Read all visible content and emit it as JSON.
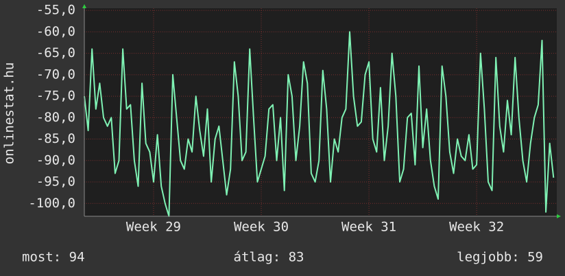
{
  "chart_data": {
    "type": "line",
    "y_label": "onlinestat.hu",
    "x": [
      -108,
      -102,
      -96,
      -90,
      -84,
      -78,
      -72,
      -66,
      -60,
      -54,
      -48,
      -42,
      -36,
      -30,
      -24,
      -18,
      -12,
      -6,
      0,
      6,
      12,
      18,
      24,
      30,
      36,
      42,
      48,
      54,
      60,
      66,
      72,
      78,
      84,
      90,
      96,
      102,
      108,
      114,
      120,
      126,
      132,
      138,
      144,
      150,
      156,
      162,
      168,
      174,
      180,
      186,
      192,
      198,
      204,
      210,
      216,
      222,
      228,
      234,
      240,
      246,
      252,
      258,
      264,
      270,
      276,
      282,
      288,
      294,
      300,
      306,
      312,
      318,
      324,
      330,
      336,
      342,
      348,
      354,
      360,
      366,
      372,
      378,
      384,
      390,
      396,
      402,
      408,
      414,
      420,
      426,
      432,
      438,
      444,
      450,
      456,
      462,
      468,
      474,
      480,
      486,
      492,
      498,
      504,
      510,
      516,
      522,
      528,
      534,
      540,
      546,
      552,
      558,
      564,
      570,
      576,
      582,
      588,
      594,
      600,
      606,
      612,
      618,
      624
    ],
    "series": [
      {
        "name": "onlinestat.hu",
        "color": "#7ff2b4",
        "values": [
          -75,
          -83,
          -64,
          -78,
          -72,
          -80,
          -82,
          -80,
          -93,
          -90,
          -64,
          -78,
          -77,
          -90,
          -96,
          -72,
          -86,
          -88,
          -95,
          -84,
          -96,
          -100,
          -103,
          -70,
          -80,
          -90,
          -92,
          -85,
          -88,
          -75,
          -83,
          -89,
          -78,
          -95,
          -85,
          -82,
          -90,
          -98,
          -92,
          -67,
          -75,
          -90,
          -88,
          -64,
          -80,
          -95,
          -92,
          -89,
          -78,
          -77,
          -90,
          -80,
          -97,
          -70,
          -75,
          -90,
          -82,
          -67,
          -72,
          -93,
          -95,
          -90,
          -69,
          -78,
          -95,
          -85,
          -88,
          -80,
          -78,
          -60,
          -75,
          -82,
          -81,
          -70,
          -67,
          -85,
          -88,
          -73,
          -90,
          -82,
          -65,
          -75,
          -95,
          -92,
          -80,
          -79,
          -91,
          -68,
          -87,
          -78,
          -90,
          -96,
          -99,
          -68,
          -75,
          -88,
          -93,
          -85,
          -89,
          -90,
          -84,
          -92,
          -91,
          -65,
          -78,
          -95,
          -97,
          -66,
          -82,
          -88,
          -76,
          -84,
          -66,
          -80,
          -90,
          -95,
          -86,
          -80,
          -77,
          -62,
          -102,
          -86,
          -94
        ]
      }
    ],
    "xlim": [
      -108,
      629
    ],
    "xticks": [
      {
        "value": 0,
        "label": "Week 29"
      },
      {
        "value": 168,
        "label": "Week 30"
      },
      {
        "value": 336,
        "label": "Week 31"
      },
      {
        "value": 504,
        "label": "Week 32"
      }
    ],
    "ylim": [
      -103,
      -54.5
    ],
    "yticks": [
      {
        "value": -55,
        "label": "-55,0"
      },
      {
        "value": -60,
        "label": "-60,0"
      },
      {
        "value": -65,
        "label": "-65,0"
      },
      {
        "value": -70,
        "label": "-70,0"
      },
      {
        "value": -75,
        "label": "-75,0"
      },
      {
        "value": -80,
        "label": "-80,0"
      },
      {
        "value": -85,
        "label": "-85,0"
      },
      {
        "value": -90,
        "label": "-90,0"
      },
      {
        "value": -95,
        "label": "-95,0"
      },
      {
        "value": -100,
        "label": "-100,0"
      }
    ],
    "grid": true,
    "footer": [
      "most: 94",
      "átlag: 83",
      "legjobb: 59"
    ]
  }
}
